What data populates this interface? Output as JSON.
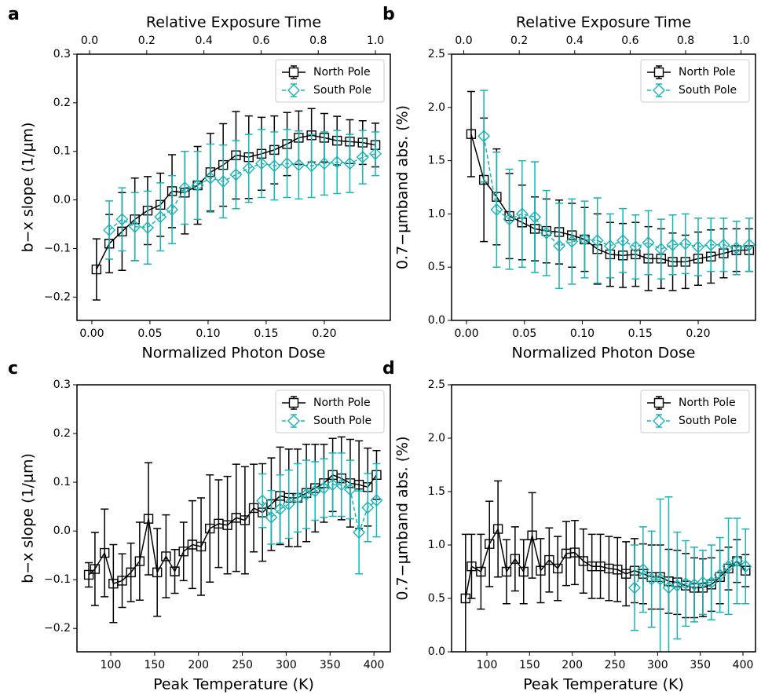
{
  "chart_data": [
    {
      "type": "line",
      "panel": "a",
      "xlabel": "Normalized Photon Dose",
      "ylabel": "b−x slope (1/μm)",
      "top_xlabel": "Relative Exposure Time",
      "xlim": [
        -0.0128,
        0.2568
      ],
      "ylim": [
        -0.248,
        0.3
      ],
      "xticks": [
        {
          "value": 0,
          "label": "0.00"
        },
        {
          "value": 0.05,
          "label": "0.05"
        },
        {
          "value": 0.1,
          "label": "0.10"
        },
        {
          "value": 0.15,
          "label": "0.15"
        },
        {
          "value": 0.2,
          "label": "0.20"
        }
      ],
      "yticks": [
        {
          "value": -0.2,
          "label": "−0.2"
        },
        {
          "value": -0.1,
          "label": "−0.1"
        },
        {
          "value": 0,
          "label": "0.0"
        },
        0.1,
        0.2,
        0.3
      ],
      "top_xlim": [
        -0.044,
        1.052
      ],
      "top_xticks": [
        {
          "value": 0,
          "label": "0.0"
        },
        0.2,
        0.4,
        0.6,
        0.8,
        {
          "value": 1,
          "label": "1.0"
        }
      ],
      "legend": "upper right",
      "x": [
        0.004,
        0.015,
        0.026,
        0.037,
        0.048,
        0.059,
        0.069,
        0.08,
        0.091,
        0.102,
        0.113,
        0.124,
        0.135,
        0.146,
        0.157,
        0.168,
        0.178,
        0.189,
        0.2,
        0.211,
        0.222,
        0.233,
        0.244
      ],
      "series": [
        {
          "name": "North Pole",
          "color": "#000000",
          "marker": "square",
          "linestyle": "solid",
          "values": [
            -0.143,
            -0.09,
            -0.065,
            -0.04,
            -0.022,
            -0.01,
            0.018,
            0.015,
            0.03,
            0.057,
            0.072,
            0.092,
            0.088,
            0.095,
            0.103,
            0.115,
            0.128,
            0.133,
            0.128,
            0.122,
            0.12,
            0.118,
            0.113
          ],
          "errors": [
            0.063,
            0.06,
            0.08,
            0.085,
            0.07,
            0.065,
            0.075,
            0.085,
            0.08,
            0.08,
            0.085,
            0.09,
            0.085,
            0.075,
            0.07,
            0.065,
            0.055,
            0.055,
            0.05,
            0.05,
            0.045,
            0.045,
            0.045
          ]
        },
        {
          "name": "South Pole",
          "color": "#17b5b5",
          "marker": "diamond",
          "linestyle": "dashed",
          "values": [
            null,
            -0.062,
            -0.04,
            -0.055,
            -0.057,
            -0.035,
            -0.02,
            0.025,
            0.03,
            0.045,
            0.038,
            0.052,
            0.065,
            0.075,
            0.07,
            0.075,
            0.072,
            0.07,
            0.075,
            0.078,
            0.075,
            0.088,
            0.095
          ],
          "errors": [
            null,
            0.06,
            0.065,
            0.07,
            0.075,
            0.07,
            0.07,
            0.075,
            0.07,
            0.07,
            0.075,
            0.07,
            0.07,
            0.07,
            0.07,
            0.07,
            0.07,
            0.065,
            0.065,
            0.065,
            0.06,
            0.055,
            0.045
          ]
        }
      ]
    },
    {
      "type": "line",
      "panel": "b",
      "xlabel": "Normalized Photon Dose",
      "ylabel": "0.7−μmband abs. (%)",
      "top_xlabel": "Relative Exposure Time",
      "xlim": [
        -0.0129,
        0.2495
      ],
      "ylim": [
        0,
        2.5
      ],
      "xticks": [
        {
          "value": 0,
          "label": "0.00"
        },
        {
          "value": 0.05,
          "label": "0.05"
        },
        {
          "value": 0.1,
          "label": "0.10"
        },
        {
          "value": 0.15,
          "label": "0.15"
        },
        {
          "value": 0.2,
          "label": "0.20"
        }
      ],
      "yticks": [
        {
          "value": 0,
          "label": "0.0"
        },
        0.5,
        {
          "value": 1,
          "label": "1.0"
        },
        1.5,
        {
          "value": 2,
          "label": "2.0"
        },
        2.5
      ],
      "top_xlim": [
        -0.044,
        1.052
      ],
      "top_xticks": [
        {
          "value": 0,
          "label": "0.0"
        },
        0.2,
        0.4,
        0.6,
        0.8,
        {
          "value": 1,
          "label": "1.0"
        }
      ],
      "legend": "upper right",
      "x": [
        0.004,
        0.015,
        0.026,
        0.037,
        0.048,
        0.059,
        0.069,
        0.08,
        0.091,
        0.102,
        0.113,
        0.124,
        0.135,
        0.146,
        0.157,
        0.168,
        0.178,
        0.189,
        0.2,
        0.211,
        0.222,
        0.233,
        0.244
      ],
      "series": [
        {
          "name": "North Pole",
          "color": "#000000",
          "marker": "square",
          "linestyle": "solid",
          "values": [
            1.75,
            1.32,
            1.16,
            0.98,
            0.92,
            0.86,
            0.84,
            0.83,
            0.8,
            0.76,
            0.67,
            0.62,
            0.61,
            0.62,
            0.58,
            0.58,
            0.55,
            0.55,
            0.58,
            0.6,
            0.63,
            0.66,
            0.66
          ],
          "errors": [
            0.4,
            0.58,
            0.45,
            0.4,
            0.35,
            0.3,
            0.3,
            0.3,
            0.3,
            0.3,
            0.33,
            0.3,
            0.3,
            0.3,
            0.3,
            0.28,
            0.27,
            0.25,
            0.25,
            0.25,
            0.23,
            0.2,
            0.2
          ]
        },
        {
          "name": "South Pole",
          "color": "#17b5b5",
          "marker": "diamond",
          "linestyle": "dashed",
          "values": [
            null,
            1.73,
            1.04,
            0.95,
            1.0,
            0.97,
            0.82,
            0.7,
            0.74,
            0.76,
            0.75,
            0.7,
            0.75,
            0.69,
            0.73,
            0.67,
            0.71,
            0.72,
            0.69,
            0.71,
            0.71,
            0.68,
            0.71
          ],
          "errors": [
            null,
            0.43,
            0.54,
            0.47,
            0.5,
            0.52,
            0.4,
            0.4,
            0.4,
            0.36,
            0.4,
            0.3,
            0.3,
            0.3,
            0.3,
            0.28,
            0.28,
            0.28,
            0.27,
            0.25,
            0.25,
            0.25,
            0.25
          ]
        }
      ]
    },
    {
      "type": "line",
      "panel": "c",
      "xlabel": "Peak Temperature (K)",
      "ylabel": "b−x slope (1/μm)",
      "xlim": [
        61.5,
        418.7
      ],
      "ylim": [
        -0.248,
        0.3
      ],
      "xticks": [
        100,
        150,
        200,
        250,
        300,
        350,
        400
      ],
      "yticks": [
        {
          "value": -0.2,
          "label": "−0.2"
        },
        {
          "value": -0.1,
          "label": "−0.1"
        },
        {
          "value": 0,
          "label": "0.0"
        },
        0.1,
        0.2,
        0.3
      ],
      "legend": "upper right",
      "x": [
        75,
        82,
        93,
        103,
        113,
        123,
        133,
        143,
        153,
        163,
        173,
        183,
        193,
        203,
        213,
        223,
        233,
        243,
        253,
        263,
        273,
        283,
        293,
        303,
        313,
        323,
        333,
        343,
        353,
        363,
        373,
        383,
        393,
        403
      ],
      "series": [
        {
          "name": "North Pole",
          "color": "#000000",
          "marker": "square",
          "linestyle": "solid",
          "values": [
            -0.09,
            -0.078,
            -0.045,
            -0.108,
            -0.102,
            -0.085,
            -0.062,
            0.025,
            -0.085,
            -0.052,
            -0.083,
            -0.042,
            -0.028,
            -0.032,
            0.005,
            0.015,
            0.012,
            0.027,
            0.022,
            0.047,
            0.038,
            0.055,
            0.072,
            0.068,
            0.068,
            0.078,
            0.088,
            0.098,
            0.115,
            0.108,
            0.098,
            0.095,
            0.09,
            0.115
          ],
          "errors": [
            0.025,
            0.075,
            0.09,
            0.08,
            0.055,
            0.06,
            0.08,
            0.115,
            0.09,
            0.085,
            0.045,
            0.06,
            0.09,
            0.1,
            0.11,
            0.09,
            0.1,
            0.11,
            0.11,
            0.09,
            0.1,
            0.095,
            0.1,
            0.1,
            0.1,
            0.1,
            0.09,
            0.08,
            0.075,
            0.085,
            0.09,
            0.09,
            0.08,
            0.05
          ]
        },
        {
          "name": "South Pole",
          "color": "#17b5b5",
          "marker": "diamond",
          "linestyle": "dashed",
          "values": [
            null,
            null,
            null,
            null,
            null,
            null,
            null,
            null,
            null,
            null,
            null,
            null,
            null,
            null,
            null,
            null,
            null,
            null,
            null,
            null,
            0.062,
            0.028,
            0.045,
            0.055,
            0.068,
            0.075,
            0.082,
            0.088,
            0.095,
            0.095,
            0.085,
            -0.003,
            0.048,
            0.063
          ],
          "errors": [
            null,
            null,
            null,
            null,
            null,
            null,
            null,
            null,
            null,
            null,
            null,
            null,
            null,
            null,
            null,
            null,
            null,
            null,
            null,
            null,
            0.055,
            0.055,
            0.07,
            0.07,
            0.07,
            0.07,
            0.06,
            0.06,
            0.065,
            0.065,
            0.06,
            0.085,
            0.07,
            0.075
          ]
        }
      ]
    },
    {
      "type": "line",
      "panel": "d",
      "xlabel": "Peak Temperature (K)",
      "ylabel": "0.7−μmband abs. (%)",
      "xlim": [
        58.6,
        414.7
      ],
      "ylim": [
        0,
        2.5
      ],
      "xticks": [
        100,
        150,
        200,
        250,
        300,
        350,
        400
      ],
      "yticks": [
        {
          "value": 0,
          "label": "0.0"
        },
        0.5,
        {
          "value": 1,
          "label": "1.0"
        },
        1.5,
        {
          "value": 2,
          "label": "2.0"
        },
        2.5
      ],
      "legend": "upper right",
      "x": [
        75,
        82,
        93,
        103,
        113,
        123,
        133,
        143,
        153,
        163,
        173,
        183,
        193,
        203,
        213,
        223,
        233,
        243,
        253,
        263,
        273,
        283,
        293,
        303,
        313,
        323,
        333,
        343,
        353,
        363,
        373,
        383,
        393,
        403
      ],
      "series": [
        {
          "name": "North Pole",
          "color": "#000000",
          "marker": "square",
          "linestyle": "solid",
          "values": [
            0.5,
            0.8,
            0.75,
            1.01,
            1.15,
            0.75,
            0.87,
            0.75,
            1.09,
            0.76,
            0.86,
            0.78,
            0.92,
            0.93,
            0.85,
            0.8,
            0.8,
            0.78,
            0.77,
            0.73,
            0.76,
            0.73,
            0.7,
            0.7,
            0.66,
            0.65,
            0.62,
            0.6,
            0.6,
            0.63,
            0.7,
            0.78,
            0.85,
            0.76
          ],
          "errors": [
            0.6,
            0.3,
            0.35,
            0.4,
            0.45,
            0.3,
            0.3,
            0.3,
            0.4,
            0.3,
            0.3,
            0.3,
            0.3,
            0.3,
            0.3,
            0.3,
            0.3,
            0.3,
            0.3,
            0.3,
            0.3,
            0.28,
            0.3,
            0.3,
            0.3,
            0.3,
            0.3,
            0.28,
            0.27,
            0.25,
            0.25,
            0.2,
            0.2,
            0.15
          ]
        },
        {
          "name": "South Pole",
          "color": "#17b5b5",
          "marker": "diamond",
          "linestyle": "dashed",
          "values": [
            null,
            null,
            null,
            null,
            null,
            null,
            null,
            null,
            null,
            null,
            null,
            null,
            null,
            null,
            null,
            null,
            null,
            null,
            null,
            null,
            0.6,
            0.77,
            0.68,
            0.68,
            0.6,
            0.62,
            0.64,
            0.63,
            0.65,
            0.65,
            0.72,
            0.8,
            0.85,
            0.8
          ],
          "errors": [
            null,
            null,
            null,
            null,
            null,
            null,
            null,
            null,
            null,
            null,
            null,
            null,
            null,
            null,
            null,
            null,
            null,
            null,
            null,
            null,
            0.4,
            0.4,
            0.45,
            0.75,
            0.85,
            0.5,
            0.4,
            0.35,
            0.3,
            0.35,
            0.35,
            0.45,
            0.4,
            0.35
          ]
        }
      ]
    }
  ]
}
